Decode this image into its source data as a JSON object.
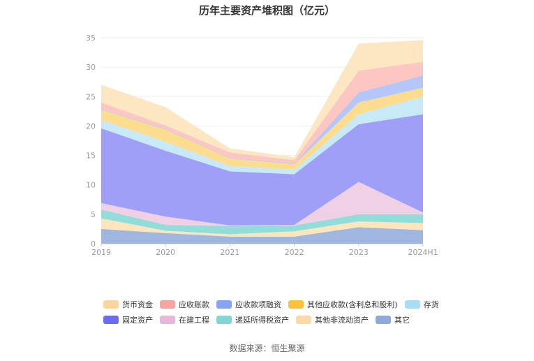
{
  "chart_data": {
    "type": "area",
    "stacked": true,
    "title": "历年主要资产堆积图（亿元）",
    "x": [
      "2019",
      "2020",
      "2021",
      "2022",
      "2023",
      "2024H1"
    ],
    "ylim": [
      0,
      35
    ],
    "yticks": [
      0,
      5,
      10,
      15,
      20,
      25,
      30,
      35
    ],
    "grid": true,
    "legend_position": "bottom",
    "series": [
      {
        "name": "其它",
        "color": "#8eaadb",
        "values": [
          2.5,
          1.8,
          1.2,
          1.2,
          2.8,
          2.3
        ]
      },
      {
        "name": "其他非流动资产",
        "color": "#fde0b0",
        "values": [
          1.8,
          0.4,
          0.4,
          0.9,
          1.0,
          1.2
        ]
      },
      {
        "name": "递延所得税资产",
        "color": "#7fd6d4",
        "values": [
          1.5,
          1.0,
          1.4,
          1.0,
          1.2,
          1.5
        ]
      },
      {
        "name": "在建工程",
        "color": "#edc8e0",
        "values": [
          1.1,
          1.4,
          0.1,
          0.1,
          5.5,
          0.3
        ]
      },
      {
        "name": "固定资产",
        "color": "#8f8ef7",
        "values": [
          12.7,
          11.2,
          9.2,
          8.6,
          9.8,
          16.7
        ]
      },
      {
        "name": "存货",
        "color": "#bde5f7",
        "values": [
          1.4,
          1.5,
          0.9,
          0.8,
          1.7,
          3.0
        ]
      },
      {
        "name": "其他应收款(含利息和股利)",
        "color": "#fcd67a",
        "values": [
          1.8,
          2.1,
          1.3,
          0.9,
          2.0,
          1.5
        ]
      },
      {
        "name": "应收款项融资",
        "color": "#a7bdf7",
        "values": [
          0.1,
          0.1,
          0.1,
          0.1,
          1.7,
          2.1
        ]
      },
      {
        "name": "应收账款",
        "color": "#fcbcb8",
        "values": [
          1.1,
          0.6,
          0.9,
          0.6,
          3.7,
          2.3
        ]
      },
      {
        "name": "货币资金",
        "color": "#fde3b8",
        "values": [
          3.0,
          3.1,
          0.7,
          0.5,
          4.6,
          3.7
        ]
      }
    ],
    "legend": [
      [
        "货币资金",
        "应收账款",
        "应收款项融资",
        "其他应收款(含利息和股利)",
        "存货"
      ],
      [
        "固定资产",
        "在建工程",
        "递延所得税资产",
        "其他非流动资产",
        "其它"
      ]
    ],
    "legend_colors": {
      "货币资金": "#fbd59b",
      "应收账款": "#f7a59f",
      "应收款项融资": "#86a4f5",
      "其他应收款(含利息和股利)": "#fbc13b",
      "存货": "#a5def5",
      "固定资产": "#6c6cf0",
      "在建工程": "#e6b7d8",
      "递延所得税资产": "#7fd6d4",
      "其他非流动资产": "#fdd9a5",
      "其它": "#8eaadb"
    },
    "source": "数据来源：恒生聚源"
  }
}
